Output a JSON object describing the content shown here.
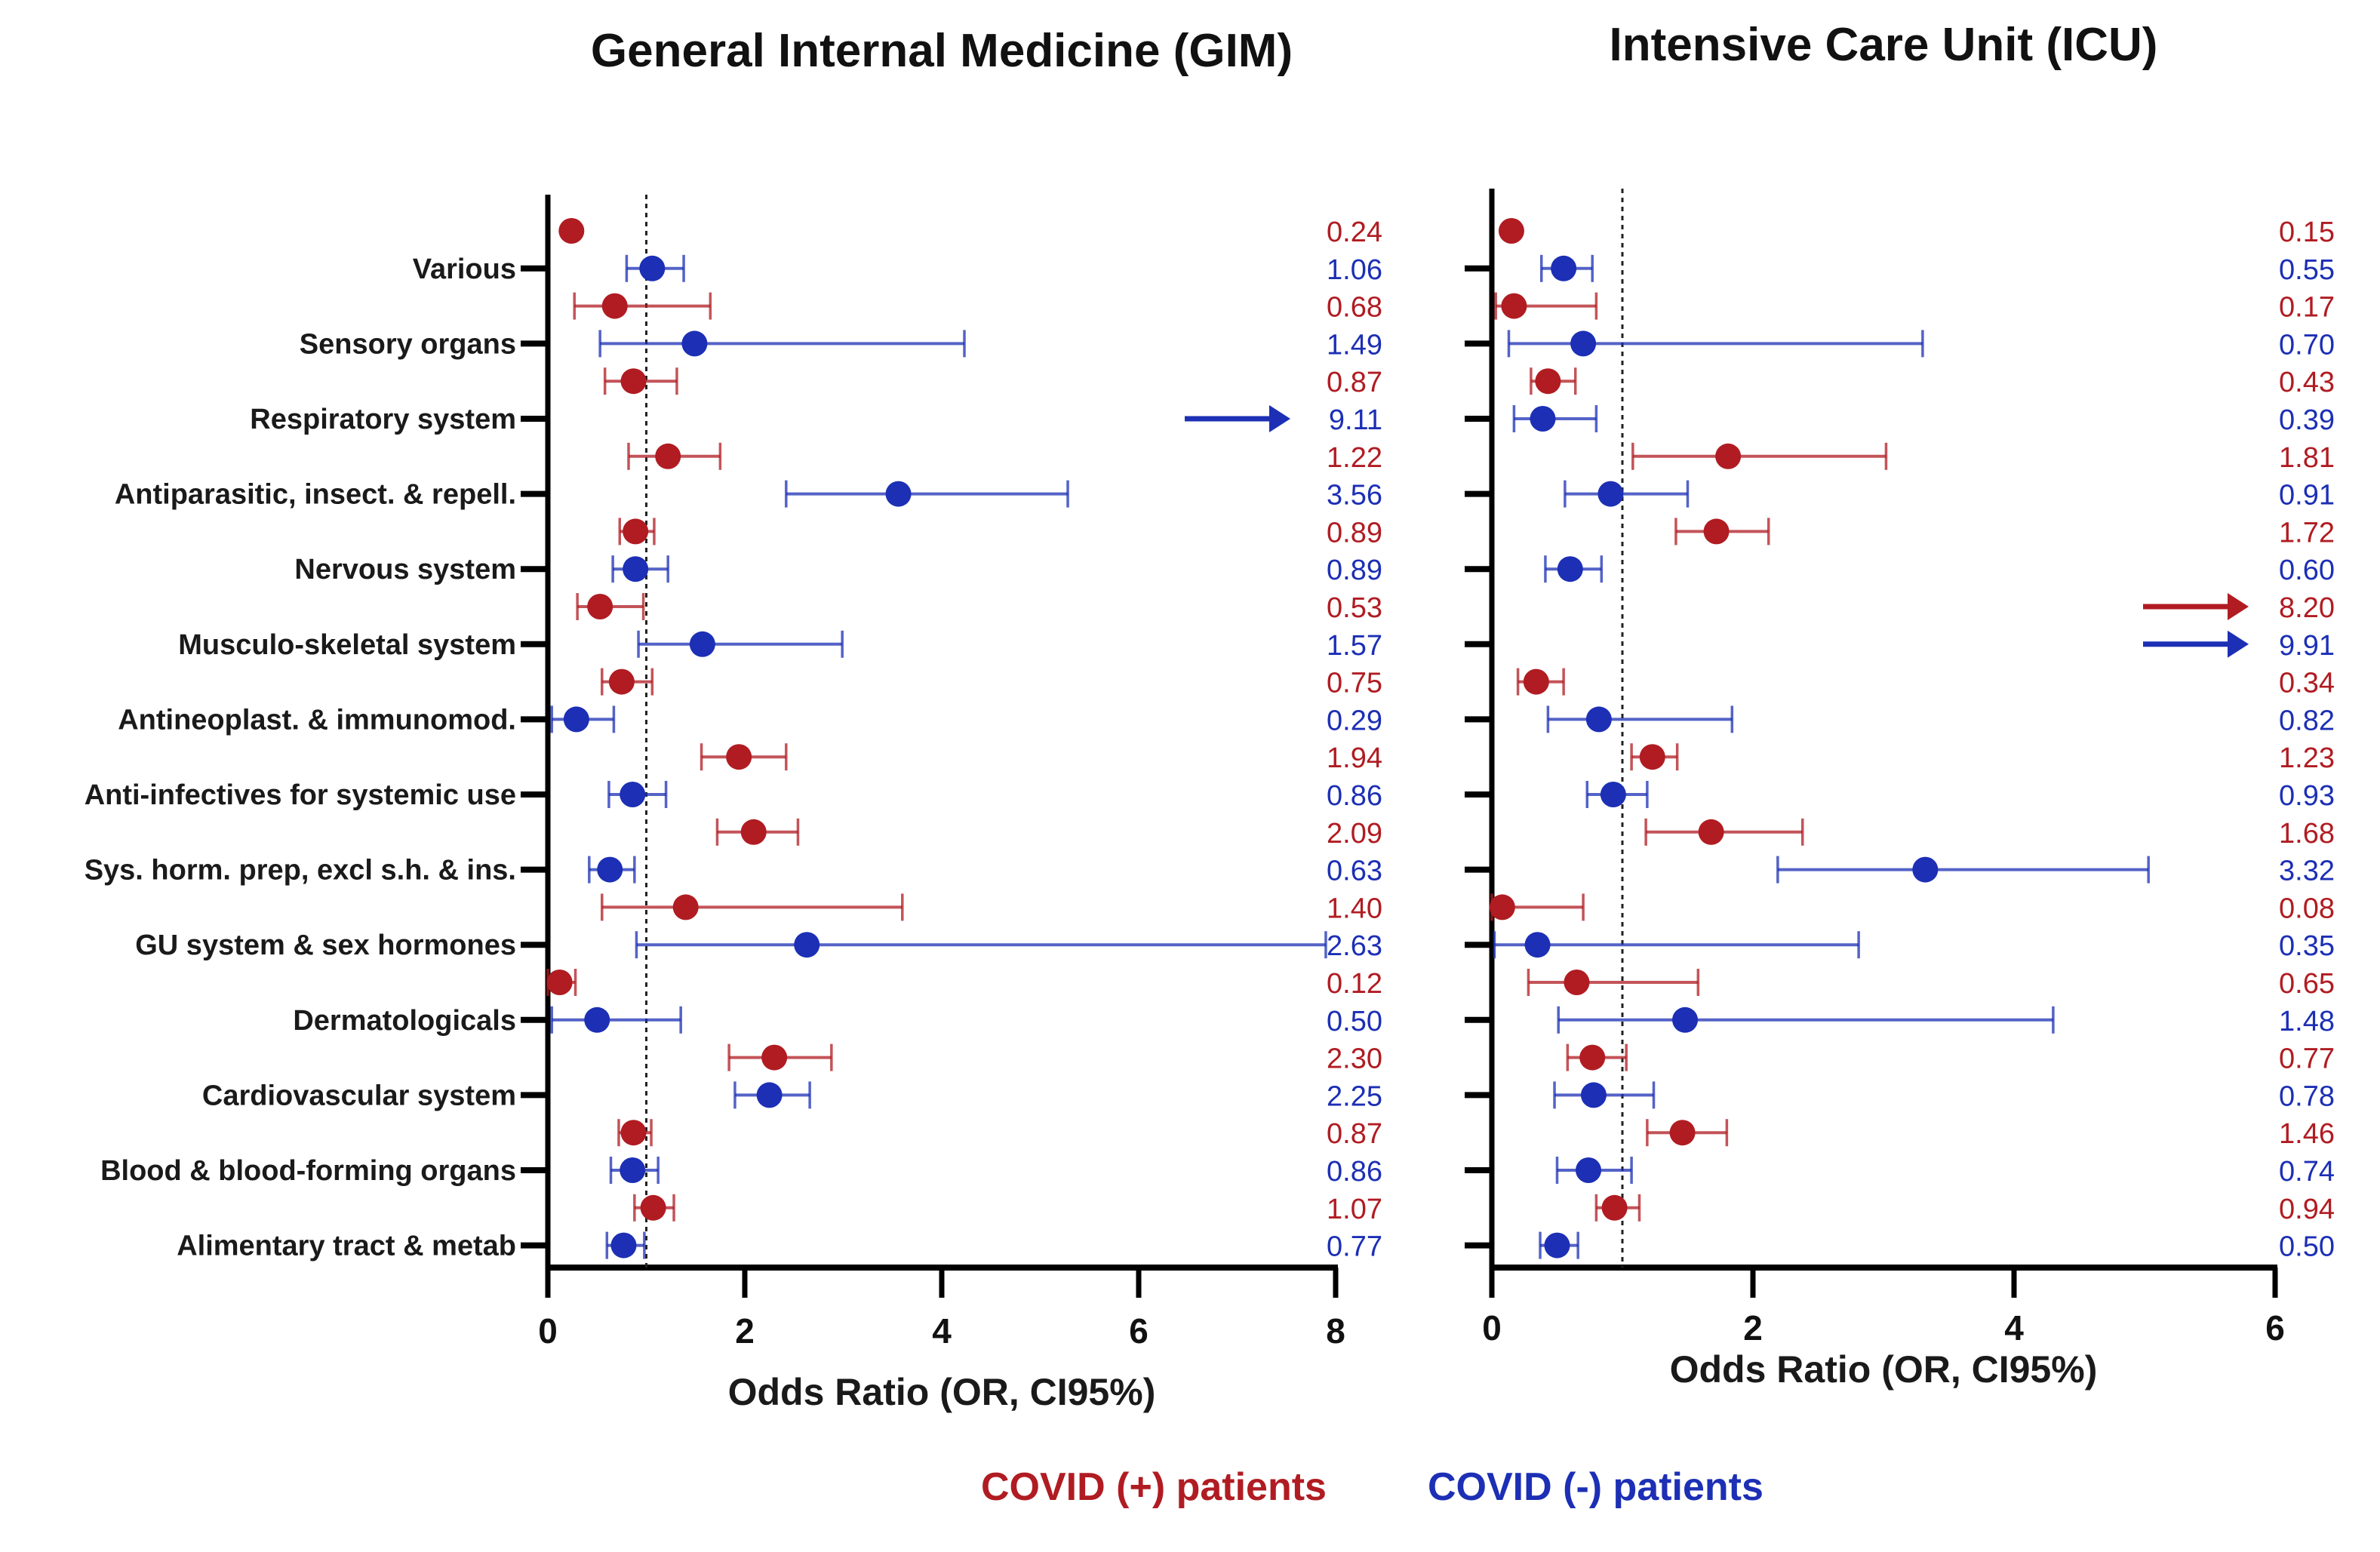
{
  "colors": {
    "covid_pos": "#b01c22",
    "covid_neg": "#1c2fb5",
    "axis": "#000000",
    "reference": "#222222"
  },
  "legend": [
    {
      "label": "COVID (+) patients",
      "series": "pos"
    },
    {
      "label": "COVID (-) patients",
      "series": "neg"
    }
  ],
  "chart_data": [
    {
      "type": "scatter",
      "subtype": "forest-plot",
      "title": "General Internal Medicine (GIM)",
      "xlabel": "Odds Ratio (OR, CI95%)",
      "ylabel": "",
      "xlim": [
        0,
        8
      ],
      "xticks": [
        "0",
        "2",
        "4",
        "6",
        "8"
      ],
      "reference_line": 1,
      "show_category_labels": true,
      "categories": [
        "Various",
        "Sensory organs",
        "Respiratory system",
        "Antiparasitic, insect. & repell.",
        "Nervous system",
        "Musculo-skeletal system",
        "Antineoplast. & immunomod.",
        "Anti-infectives for systemic use",
        "Sys. horm. prep, excl s.h. & ins.",
        "GU system & sex hormones",
        "Dermatologicals",
        "Cardiovascular system",
        "Blood & blood-forming organs",
        "Alimentary tract & metab"
      ],
      "series": [
        {
          "name": "COVID (+) patients",
          "key": "pos",
          "values": [
            0.24,
            0.68,
            0.87,
            1.22,
            0.89,
            0.53,
            0.75,
            1.94,
            2.09,
            1.4,
            0.12,
            2.3,
            0.87,
            1.07
          ],
          "labels": [
            "0.24",
            "0.68",
            "0.87",
            "1.22",
            "0.89",
            "0.53",
            "0.75",
            "1.94",
            "2.09",
            "1.40",
            "0.12",
            "2.30",
            "0.87",
            "1.07"
          ],
          "ci_low": [
            0.24,
            0.27,
            0.58,
            0.82,
            0.73,
            0.3,
            0.55,
            1.56,
            1.72,
            0.55,
            0.0,
            1.84,
            0.72,
            0.88
          ],
          "ci_high": [
            0.24,
            1.65,
            1.31,
            1.75,
            1.08,
            0.97,
            1.06,
            2.42,
            2.54,
            3.6,
            0.28,
            2.88,
            1.05,
            1.28
          ],
          "offscale": [
            false,
            false,
            false,
            false,
            false,
            false,
            false,
            false,
            false,
            false,
            false,
            false,
            false,
            false
          ]
        },
        {
          "name": "COVID (-) patients",
          "key": "neg",
          "values": [
            1.06,
            1.49,
            9.11,
            3.56,
            0.89,
            1.57,
            0.29,
            0.86,
            0.63,
            2.63,
            0.5,
            2.25,
            0.86,
            0.77
          ],
          "labels": [
            "1.06",
            "1.49",
            "9.11",
            "3.56",
            "0.89",
            "1.57",
            "0.29",
            "0.86",
            "0.63",
            "2.63",
            "0.50",
            "2.25",
            "0.86",
            "0.77"
          ],
          "ci_low": [
            0.8,
            0.53,
            9.11,
            2.42,
            0.66,
            0.92,
            0.04,
            0.62,
            0.42,
            0.9,
            0.04,
            1.9,
            0.64,
            0.6
          ],
          "ci_high": [
            1.38,
            4.23,
            9.11,
            5.28,
            1.22,
            2.99,
            0.67,
            1.2,
            0.88,
            7.9,
            1.35,
            2.66,
            1.12,
            0.98
          ],
          "offscale": [
            false,
            false,
            true,
            false,
            false,
            false,
            false,
            false,
            false,
            false,
            false,
            false,
            false,
            false
          ]
        }
      ]
    },
    {
      "type": "scatter",
      "subtype": "forest-plot",
      "title": "Intensive Care Unit (ICU)",
      "xlabel": "Odds Ratio (OR, CI95%)",
      "ylabel": "",
      "xlim": [
        0,
        6
      ],
      "xticks": [
        "0",
        "2",
        "4",
        "6"
      ],
      "reference_line": 1,
      "show_category_labels": false,
      "categories": [
        "Various",
        "Sensory organs",
        "Respiratory system",
        "Antiparasitic, insect. & repell.",
        "Nervous system",
        "Musculo-skeletal system",
        "Antineoplast. & immunomod.",
        "Anti-infectives for systemic use",
        "Sys. horm. prep, excl s.h. & ins.",
        "GU system & sex hormones",
        "Dermatologicals",
        "Cardiovascular system",
        "Blood & blood-forming organs",
        "Alimentary tract & metab"
      ],
      "series": [
        {
          "name": "COVID (+) patients",
          "key": "pos",
          "values": [
            0.15,
            0.17,
            0.43,
            1.81,
            1.72,
            8.2,
            0.34,
            1.23,
            1.68,
            0.08,
            0.65,
            0.77,
            1.46,
            0.94
          ],
          "labels": [
            "0.15",
            "0.17",
            "0.43",
            "1.81",
            "1.72",
            "8.20",
            "0.34",
            "1.23",
            "1.68",
            "0.08",
            "0.65",
            "0.77",
            "1.46",
            "0.94"
          ],
          "ci_low": [
            0.15,
            0.03,
            0.3,
            1.08,
            1.41,
            8.2,
            0.2,
            1.07,
            1.18,
            0.0,
            0.28,
            0.58,
            1.19,
            0.8
          ],
          "ci_high": [
            0.15,
            0.8,
            0.64,
            3.02,
            2.12,
            8.2,
            0.55,
            1.42,
            2.38,
            0.7,
            1.58,
            1.03,
            1.8,
            1.13
          ],
          "offscale": [
            false,
            false,
            false,
            false,
            false,
            true,
            false,
            false,
            false,
            false,
            false,
            false,
            false,
            false
          ]
        },
        {
          "name": "COVID (-) patients",
          "key": "neg",
          "values": [
            0.55,
            0.7,
            0.39,
            0.91,
            0.6,
            9.91,
            0.82,
            0.93,
            3.32,
            0.35,
            1.48,
            0.78,
            0.74,
            0.5
          ],
          "labels": [
            "0.55",
            "0.70",
            "0.39",
            "0.91",
            "0.60",
            "9.91",
            "0.82",
            "0.93",
            "3.32",
            "0.35",
            "1.48",
            "0.78",
            "0.74",
            "0.50"
          ],
          "ci_low": [
            0.38,
            0.13,
            0.17,
            0.56,
            0.41,
            9.91,
            0.43,
            0.73,
            2.19,
            0.02,
            0.51,
            0.48,
            0.5,
            0.37
          ],
          "ci_high": [
            0.77,
            3.3,
            0.8,
            1.5,
            0.84,
            9.91,
            1.84,
            1.19,
            5.03,
            2.81,
            4.3,
            1.24,
            1.07,
            0.66
          ],
          "offscale": [
            false,
            false,
            false,
            false,
            false,
            true,
            false,
            false,
            false,
            false,
            false,
            false,
            false,
            false
          ]
        }
      ]
    }
  ]
}
